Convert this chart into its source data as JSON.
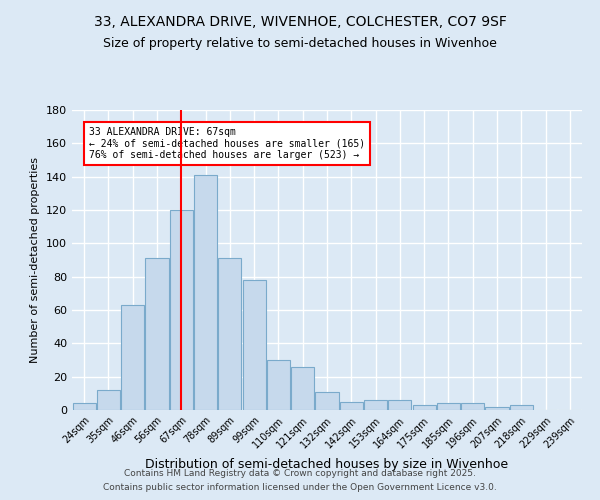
{
  "title": "33, ALEXANDRA DRIVE, WIVENHOE, COLCHESTER, CO7 9SF",
  "subtitle": "Size of property relative to semi-detached houses in Wivenhoe",
  "xlabel": "Distribution of semi-detached houses by size in Wivenhoe",
  "ylabel": "Number of semi-detached properties",
  "footnote1": "Contains HM Land Registry data © Crown copyright and database right 2025.",
  "footnote2": "Contains public sector information licensed under the Open Government Licence v3.0.",
  "bar_labels": [
    "24sqm",
    "35sqm",
    "46sqm",
    "56sqm",
    "67sqm",
    "78sqm",
    "89sqm",
    "99sqm",
    "110sqm",
    "121sqm",
    "132sqm",
    "142sqm",
    "153sqm",
    "164sqm",
    "175sqm",
    "185sqm",
    "196sqm",
    "207sqm",
    "218sqm",
    "229sqm",
    "239sqm"
  ],
  "bar_values": [
    4,
    12,
    63,
    91,
    120,
    141,
    91,
    78,
    30,
    26,
    11,
    5,
    6,
    6,
    3,
    4,
    4,
    2,
    3,
    0,
    0
  ],
  "bar_color": "#c6d9ec",
  "bar_edge_color": "#7aaacb",
  "vline_x": 4,
  "vline_color": "red",
  "annotation_title": "33 ALEXANDRA DRIVE: 67sqm",
  "annotation_line2": "← 24% of semi-detached houses are smaller (165)",
  "annotation_line3": "76% of semi-detached houses are larger (523) →",
  "annotation_box_color": "red",
  "annotation_box_fill": "white",
  "ylim": [
    0,
    180
  ],
  "yticks": [
    0,
    20,
    40,
    60,
    80,
    100,
    120,
    140,
    160,
    180
  ],
  "background_color": "#dce9f5",
  "grid_color": "white",
  "title_fontsize": 10,
  "subtitle_fontsize": 9
}
